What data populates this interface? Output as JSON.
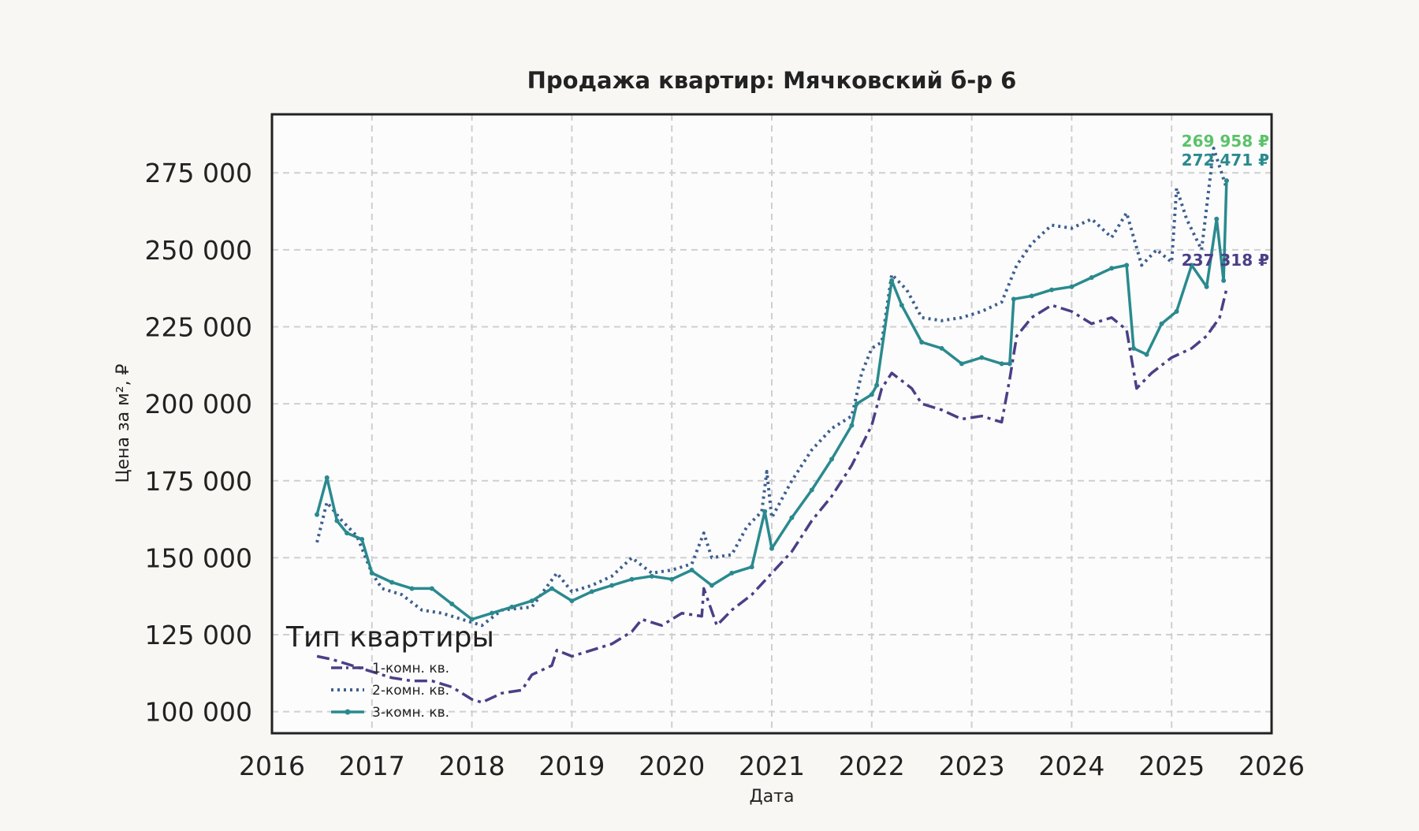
{
  "chart_data": {
    "type": "line",
    "title": "Продажа квартир: Мячковский б-р 6",
    "xlabel": "Дата",
    "ylabel": "Цена за м², ₽",
    "xlim": [
      2016,
      2026
    ],
    "ylim": [
      93000,
      294000
    ],
    "x_ticks": [
      2016,
      2017,
      2018,
      2019,
      2020,
      2021,
      2022,
      2023,
      2024,
      2025,
      2026
    ],
    "x_tick_labels": [
      "2016",
      "2017",
      "2018",
      "2019",
      "2020",
      "2021",
      "2022",
      "2023",
      "2024",
      "2025",
      "2026"
    ],
    "y_ticks": [
      100000,
      125000,
      150000,
      175000,
      200000,
      225000,
      250000,
      275000
    ],
    "y_tick_labels": [
      "100 000",
      "125 000",
      "150 000",
      "175 000",
      "200 000",
      "225 000",
      "250 000",
      "275 000"
    ],
    "grid": true,
    "legend": {
      "title": "Тип квартиры",
      "placement": "lower-left"
    },
    "series": [
      {
        "name": "1-комн. кв.",
        "color": "#4b3f86",
        "style": "dashdot",
        "end_label": "237 318 ₽",
        "x": [
          2016.45,
          2016.6,
          2016.8,
          2017.0,
          2017.2,
          2017.4,
          2017.6,
          2017.8,
          2018.0,
          2018.1,
          2018.3,
          2018.5,
          2018.6,
          2018.8,
          2018.85,
          2019.0,
          2019.2,
          2019.4,
          2019.6,
          2019.7,
          2019.9,
          2020.1,
          2020.3,
          2020.32,
          2020.45,
          2020.6,
          2020.8,
          2021.0,
          2021.2,
          2021.4,
          2021.6,
          2021.8,
          2022.0,
          2022.1,
          2022.2,
          2022.4,
          2022.5,
          2022.7,
          2022.9,
          2023.1,
          2023.3,
          2023.38,
          2023.45,
          2023.6,
          2023.8,
          2024.0,
          2024.2,
          2024.4,
          2024.55,
          2024.65,
          2024.8,
          2025.0,
          2025.2,
          2025.35,
          2025.48,
          2025.55
        ],
        "y": [
          118000,
          117000,
          115000,
          113000,
          111000,
          110000,
          110000,
          108000,
          104000,
          103000,
          106000,
          107000,
          112000,
          115000,
          120000,
          118000,
          120000,
          122000,
          126000,
          130000,
          128000,
          132000,
          131000,
          140000,
          128000,
          133000,
          138000,
          145000,
          152000,
          162000,
          170000,
          180000,
          193000,
          205000,
          210000,
          205000,
          200000,
          198000,
          195000,
          196000,
          194000,
          208000,
          222000,
          228000,
          232000,
          230000,
          226000,
          228000,
          224000,
          205000,
          210000,
          215000,
          218000,
          222000,
          228000,
          237318
        ]
      },
      {
        "name": "2-комн. кв.",
        "color": "#3d5f8e",
        "style": "dotted",
        "end_label": "269 958 ₽",
        "end_label_color": "#5cc26a",
        "x": [
          2016.45,
          2016.55,
          2016.7,
          2016.85,
          2017.0,
          2017.1,
          2017.3,
          2017.5,
          2017.7,
          2017.9,
          2018.1,
          2018.3,
          2018.6,
          2018.85,
          2019.0,
          2019.2,
          2019.4,
          2019.6,
          2019.8,
          2020.0,
          2020.2,
          2020.32,
          2020.4,
          2020.6,
          2020.75,
          2020.9,
          2020.95,
          2021.0,
          2021.2,
          2021.4,
          2021.6,
          2021.8,
          2021.9,
          2022.0,
          2022.1,
          2022.2,
          2022.35,
          2022.5,
          2022.7,
          2022.9,
          2023.1,
          2023.3,
          2023.45,
          2023.6,
          2023.8,
          2024.0,
          2024.2,
          2024.4,
          2024.55,
          2024.7,
          2024.85,
          2025.0,
          2025.05,
          2025.15,
          2025.3,
          2025.42,
          2025.5,
          2025.55
        ],
        "y": [
          155000,
          168000,
          162000,
          157000,
          145000,
          140000,
          138000,
          133000,
          132000,
          130000,
          128000,
          133000,
          134000,
          145000,
          139000,
          141000,
          144000,
          150000,
          145000,
          146000,
          148000,
          158000,
          150000,
          151000,
          160000,
          165000,
          178000,
          163000,
          175000,
          185000,
          192000,
          196000,
          210000,
          218000,
          220000,
          242000,
          237000,
          228000,
          227000,
          228000,
          230000,
          233000,
          245000,
          252000,
          258000,
          257000,
          260000,
          254000,
          262000,
          245000,
          250000,
          246000,
          270000,
          260000,
          250000,
          283000,
          275000,
          269958
        ]
      },
      {
        "name": "3-комн. кв.",
        "color": "#2a8a8e",
        "style": "solid-marker",
        "end_label": "272 471 ₽",
        "end_label_color": "#2a8a8e",
        "x": [
          2016.45,
          2016.55,
          2016.65,
          2016.75,
          2016.9,
          2017.0,
          2017.2,
          2017.4,
          2017.6,
          2017.8,
          2018.0,
          2018.2,
          2018.4,
          2018.6,
          2018.8,
          2019.0,
          2019.2,
          2019.4,
          2019.6,
          2019.8,
          2020.0,
          2020.2,
          2020.4,
          2020.6,
          2020.8,
          2020.93,
          2021.0,
          2021.2,
          2021.4,
          2021.6,
          2021.8,
          2021.85,
          2022.0,
          2022.05,
          2022.2,
          2022.3,
          2022.5,
          2022.7,
          2022.9,
          2023.1,
          2023.3,
          2023.38,
          2023.42,
          2023.6,
          2023.8,
          2024.0,
          2024.2,
          2024.4,
          2024.55,
          2024.62,
          2024.75,
          2024.9,
          2025.05,
          2025.2,
          2025.35,
          2025.45,
          2025.52,
          2025.55
        ],
        "y": [
          164000,
          176000,
          162000,
          158000,
          156000,
          145000,
          142000,
          140000,
          140000,
          135000,
          130000,
          132000,
          134000,
          136000,
          140000,
          136000,
          139000,
          141000,
          143000,
          144000,
          143000,
          146000,
          141000,
          145000,
          147000,
          165000,
          153000,
          163000,
          172000,
          182000,
          193000,
          200000,
          203000,
          206000,
          240000,
          232000,
          220000,
          218000,
          213000,
          215000,
          213000,
          213000,
          234000,
          235000,
          237000,
          238000,
          241000,
          244000,
          245000,
          218000,
          216000,
          226000,
          230000,
          245000,
          238000,
          260000,
          240000,
          272471
        ]
      }
    ]
  }
}
